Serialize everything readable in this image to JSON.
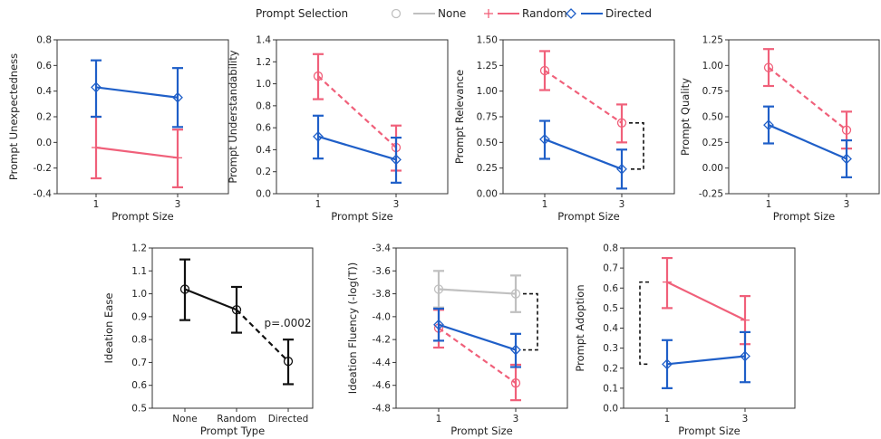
{
  "legend": {
    "title": "Prompt Selection",
    "items": [
      {
        "label": "None",
        "marker": "circle",
        "color": "#c0c0c0"
      },
      {
        "label": "Random",
        "marker": "plus",
        "color": "#f0607a"
      },
      {
        "label": "Directed",
        "marker": "diamond",
        "color": "#1f5fc8"
      }
    ]
  },
  "colors": {
    "None": "#c0c0c0",
    "Random": "#f0607a",
    "Directed": "#1f5fc8",
    "Overall": "#111111"
  },
  "chart_data": [
    {
      "type": "line",
      "id": "unexpectedness",
      "xlabel": "Prompt Size",
      "ylabel": "Prompt Unexpectedness",
      "x": [
        "1",
        "3"
      ],
      "ylim": [
        -0.4,
        0.8
      ],
      "yticks": [
        "-0.4",
        "-0.2",
        "0.0",
        "0.2",
        "0.4",
        "0.6",
        "0.8"
      ],
      "series": [
        {
          "name": "Random",
          "values": [
            -0.04,
            -0.12
          ],
          "err_low": [
            -0.28,
            -0.35
          ],
          "err_high": [
            0.2,
            0.1
          ],
          "dashed": false
        },
        {
          "name": "Directed",
          "values": [
            0.43,
            0.35
          ],
          "err_low": [
            0.2,
            0.12
          ],
          "err_high": [
            0.64,
            0.58
          ],
          "dashed": false
        }
      ],
      "brackets": []
    },
    {
      "type": "line",
      "id": "understandability",
      "xlabel": "Prompt Size",
      "ylabel": "Prompt Understandability",
      "x": [
        "1",
        "3"
      ],
      "ylim": [
        0.0,
        1.4
      ],
      "yticks": [
        "0.0",
        "0.2",
        "0.4",
        "0.6",
        "0.8",
        "1.0",
        "1.2",
        "1.4"
      ],
      "series": [
        {
          "name": "Random",
          "values": [
            1.07,
            0.42
          ],
          "err_low": [
            0.86,
            0.21
          ],
          "err_high": [
            1.27,
            0.62
          ],
          "dashed": true
        },
        {
          "name": "Directed",
          "values": [
            0.52,
            0.31
          ],
          "err_low": [
            0.32,
            0.1
          ],
          "err_high": [
            0.71,
            0.51
          ],
          "dashed": false
        }
      ],
      "brackets": []
    },
    {
      "type": "line",
      "id": "relevance",
      "xlabel": "Prompt Size",
      "ylabel": "Prompt Relevance",
      "x": [
        "1",
        "3"
      ],
      "ylim": [
        0.0,
        1.5
      ],
      "yticks": [
        "0.00",
        "0.25",
        "0.50",
        "0.75",
        "1.00",
        "1.25",
        "1.50"
      ],
      "series": [
        {
          "name": "Random",
          "values": [
            1.2,
            0.69
          ],
          "err_low": [
            1.01,
            0.5
          ],
          "err_high": [
            1.39,
            0.87
          ],
          "dashed": true
        },
        {
          "name": "Directed",
          "values": [
            0.53,
            0.24
          ],
          "err_low": [
            0.34,
            0.05
          ],
          "err_high": [
            0.71,
            0.43
          ],
          "dashed": false
        }
      ],
      "brackets": [
        {
          "x_index": 1,
          "y1": 0.69,
          "y2": 0.24
        }
      ]
    },
    {
      "type": "line",
      "id": "quality",
      "xlabel": "Prompt Size",
      "ylabel": "Prompt Quality",
      "x": [
        "1",
        "3"
      ],
      "ylim": [
        -0.25,
        1.25
      ],
      "yticks": [
        "-0.25",
        "0.00",
        "0.25",
        "0.50",
        "0.75",
        "1.00",
        "1.25"
      ],
      "series": [
        {
          "name": "Random",
          "values": [
            0.98,
            0.37
          ],
          "err_low": [
            0.8,
            0.19
          ],
          "err_high": [
            1.16,
            0.55
          ],
          "dashed": true
        },
        {
          "name": "Directed",
          "values": [
            0.42,
            0.09
          ],
          "err_low": [
            0.24,
            -0.09
          ],
          "err_high": [
            0.6,
            0.27
          ],
          "dashed": false
        }
      ],
      "brackets": []
    },
    {
      "type": "line",
      "id": "ideation-ease",
      "xlabel": "Prompt Type",
      "ylabel": "Ideation Ease",
      "x": [
        "None",
        "Random",
        "Directed"
      ],
      "ylim": [
        0.5,
        1.2
      ],
      "yticks": [
        "0.5",
        "0.6",
        "0.7",
        "0.8",
        "0.9",
        "1.0",
        "1.1",
        "1.2"
      ],
      "series": [
        {
          "name": "Overall",
          "values": [
            1.02,
            0.93,
            0.705
          ],
          "err_low": [
            0.885,
            0.83,
            0.605
          ],
          "err_high": [
            1.15,
            1.03,
            0.8
          ],
          "dashed_last": true
        }
      ],
      "annotation": "p=.0002",
      "brackets": []
    },
    {
      "type": "line",
      "id": "ideation-fluency",
      "xlabel": "Prompt Size",
      "ylabel": "Ideation Fluency (-log(T))",
      "x": [
        "1",
        "3"
      ],
      "ylim": [
        -4.8,
        -3.4
      ],
      "yticks": [
        "-4.8",
        "-4.6",
        "-4.4",
        "-4.2",
        "-4.0",
        "-3.8",
        "-3.6",
        "-3.4"
      ],
      "series": [
        {
          "name": "None",
          "values": [
            -3.76,
            -3.8
          ],
          "err_low": [
            -3.92,
            -3.96
          ],
          "err_high": [
            -3.6,
            -3.64
          ],
          "dashed": false
        },
        {
          "name": "Random",
          "values": [
            -4.1,
            -4.58
          ],
          "err_low": [
            -4.27,
            -4.73
          ],
          "err_high": [
            -3.94,
            -4.42
          ],
          "dashed": true
        },
        {
          "name": "Directed",
          "values": [
            -4.07,
            -4.29
          ],
          "err_low": [
            -4.21,
            -4.44
          ],
          "err_high": [
            -3.93,
            -4.15
          ],
          "dashed": false
        }
      ],
      "brackets": [
        {
          "x_index": 1,
          "y1": -3.8,
          "y2": -4.29
        }
      ]
    },
    {
      "type": "line",
      "id": "prompt-adoption",
      "xlabel": "Prompt Size",
      "ylabel": "Prompt Adoption",
      "x": [
        "1",
        "3"
      ],
      "ylim": [
        0.0,
        0.8
      ],
      "yticks": [
        "0.0",
        "0.1",
        "0.2",
        "0.3",
        "0.4",
        "0.5",
        "0.6",
        "0.7",
        "0.8"
      ],
      "series": [
        {
          "name": "Random",
          "values": [
            0.63,
            0.44
          ],
          "err_low": [
            0.5,
            0.32
          ],
          "err_high": [
            0.75,
            0.56
          ],
          "dashed": false
        },
        {
          "name": "Directed",
          "values": [
            0.22,
            0.26
          ],
          "err_low": [
            0.1,
            0.13
          ],
          "err_high": [
            0.34,
            0.38
          ],
          "dashed": false
        }
      ],
      "brackets": [
        {
          "x_index": 0,
          "side": "left",
          "y1": 0.63,
          "y2": 0.22
        }
      ]
    }
  ]
}
